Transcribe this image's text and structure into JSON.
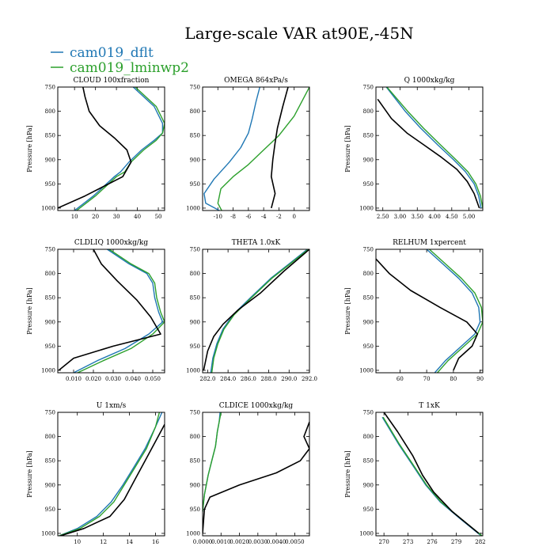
{
  "title": "Large-scale VAR at90E,-45N",
  "legend": [
    {
      "name": "cam019_dflt",
      "color": "#1f77b4"
    },
    {
      "name": "cam019_lminwp2",
      "color": "#2ca02c"
    }
  ],
  "obs_color": "#000000",
  "chart_data": [
    {
      "type": "line",
      "title": "CLOUD  100xfraction",
      "ylabel": "Pressure [hPa]",
      "xlim": [
        2,
        53
      ],
      "ylim": [
        750,
        1005
      ],
      "xticks": [
        10,
        20,
        30,
        40,
        50
      ],
      "xticklabels": [
        "10",
        "20",
        "30",
        "40",
        "50"
      ],
      "yticks": [
        750,
        800,
        850,
        900,
        950,
        1000
      ],
      "yticklabels": [
        "750",
        "800",
        "850",
        "900",
        "950",
        "1000"
      ],
      "series": [
        {
          "name": "cam019_dflt",
          "x": [
            10,
            19,
            29,
            32,
            36,
            42,
            48,
            52,
            52,
            48,
            38
          ],
          "y": [
            1005,
            975,
            935,
            925,
            905,
            880,
            860,
            845,
            825,
            790,
            750
          ]
        },
        {
          "name": "cam019_lminwp2",
          "x": [
            11,
            20,
            30,
            34,
            37,
            43,
            49,
            52,
            53,
            49,
            39
          ],
          "y": [
            1005,
            975,
            935,
            925,
            905,
            880,
            860,
            845,
            825,
            790,
            750
          ]
        },
        {
          "name": "obs",
          "x": [
            2,
            15,
            33,
            37,
            35,
            29,
            22,
            17,
            15,
            14
          ],
          "y": [
            1000,
            975,
            935,
            905,
            880,
            855,
            830,
            800,
            770,
            750
          ]
        }
      ]
    },
    {
      "type": "line",
      "title": "OMEGA  864xPa/s",
      "ylabel": "",
      "xlim": [
        -12,
        2
      ],
      "ylim": [
        750,
        1005
      ],
      "xticks": [
        -10,
        -8,
        -6,
        -4,
        -2,
        0
      ],
      "xticklabels": [
        "-10",
        "-8",
        "-6",
        "-4",
        "-2",
        "0"
      ],
      "yticks": [
        750,
        800,
        850,
        900,
        950,
        1000
      ],
      "yticklabels": [
        "750",
        "800",
        "850",
        "900",
        "950",
        "1000"
      ],
      "series": [
        {
          "name": "cam019_dflt",
          "x": [
            -9.8,
            -11.6,
            -11.8,
            -10.5,
            -8.5,
            -7,
            -6,
            -5.5,
            -5,
            -4.5
          ],
          "y": [
            1005,
            990,
            970,
            940,
            905,
            875,
            845,
            815,
            780,
            750
          ]
        },
        {
          "name": "cam019_lminwp2",
          "x": [
            -9.5,
            -10,
            -9.6,
            -8,
            -6,
            -4,
            -2,
            0,
            2
          ],
          "y": [
            1005,
            990,
            960,
            935,
            910,
            880,
            850,
            810,
            750
          ]
        },
        {
          "name": "obs",
          "x": [
            -3,
            -2.5,
            -3,
            -2.8,
            -2.5,
            -2.2,
            -1.5,
            -0.8
          ],
          "y": [
            1000,
            970,
            935,
            900,
            865,
            835,
            790,
            750
          ]
        }
      ]
    },
    {
      "type": "line",
      "title": "Q  1000xkg/kg",
      "ylabel": "Pressure [hPa]",
      "xlim": [
        2.3,
        5.4
      ],
      "ylim": [
        750,
        1005
      ],
      "xticks": [
        2.5,
        3.0,
        3.5,
        4.0,
        4.5,
        5.0
      ],
      "xticklabels": [
        "2.50",
        "3.00",
        "3.50",
        "4.00",
        "4.50",
        "5.00"
      ],
      "yticks": [
        750,
        800,
        850,
        900,
        950,
        1000
      ],
      "yticklabels": [
        "750",
        "800",
        "850",
        "900",
        "950",
        "1000"
      ],
      "series": [
        {
          "name": "cam019_dflt",
          "x": [
            5.35,
            5.28,
            5.15,
            4.9,
            4.55,
            4.1,
            3.6,
            3.15,
            2.6
          ],
          "y": [
            1000,
            975,
            950,
            925,
            900,
            870,
            835,
            800,
            750
          ]
        },
        {
          "name": "cam019_lminwp2",
          "x": [
            5.4,
            5.33,
            5.2,
            4.97,
            4.62,
            4.18,
            3.68,
            3.22,
            2.62
          ],
          "y": [
            1000,
            975,
            950,
            925,
            900,
            870,
            835,
            800,
            750
          ]
        },
        {
          "name": "obs",
          "x": [
            5.3,
            5.15,
            4.95,
            4.65,
            4.2,
            3.7,
            3.2,
            2.75,
            2.35
          ],
          "y": [
            1000,
            970,
            945,
            920,
            895,
            870,
            845,
            815,
            775
          ]
        }
      ]
    },
    {
      "type": "line",
      "title": "CLDLIQ  1000xkg/kg",
      "ylabel": "Pressure [hPa]",
      "xlim": [
        0.002,
        0.056
      ],
      "ylim": [
        750,
        1005
      ],
      "xticks": [
        0.01,
        0.02,
        0.03,
        0.04,
        0.05
      ],
      "xticklabels": [
        "0.010",
        "0.020",
        "0.030",
        "0.040",
        "0.050"
      ],
      "yticks": [
        750,
        800,
        850,
        900,
        950,
        1000
      ],
      "yticklabels": [
        "750",
        "800",
        "850",
        "900",
        "950",
        "1000"
      ],
      "series": [
        {
          "name": "cam019_dflt",
          "x": [
            0.01,
            0.022,
            0.036,
            0.048,
            0.055,
            0.053,
            0.051,
            0.05,
            0.047,
            0.038,
            0.027
          ],
          "y": [
            1005,
            980,
            955,
            925,
            900,
            880,
            850,
            820,
            800,
            780,
            750
          ]
        },
        {
          "name": "cam019_lminwp2",
          "x": [
            0.012,
            0.025,
            0.039,
            0.05,
            0.056,
            0.054,
            0.052,
            0.051,
            0.048,
            0.039,
            0.028
          ],
          "y": [
            1005,
            980,
            955,
            925,
            900,
            880,
            850,
            820,
            800,
            780,
            750
          ]
        },
        {
          "name": "obs",
          "x": [
            0.0025,
            0.01,
            0.03,
            0.054,
            0.049,
            0.042,
            0.032,
            0.024,
            0.02
          ],
          "y": [
            1000,
            975,
            950,
            925,
            890,
            855,
            815,
            780,
            750
          ]
        }
      ]
    },
    {
      "type": "line",
      "title": "THETA  1.0xK",
      "ylabel": "",
      "xlim": [
        281.5,
        292.0
      ],
      "ylim": [
        750,
        1005
      ],
      "xticks": [
        282.0,
        284.0,
        286.0,
        288.0,
        290.0,
        292.0
      ],
      "xticklabels": [
        "282.0",
        "284.0",
        "286.0",
        "288.0",
        "290.0",
        "292.0"
      ],
      "yticks": [
        750,
        800,
        850,
        900,
        950,
        1000
      ],
      "yticklabels": [
        "750",
        "800",
        "850",
        "900",
        "950",
        "1000"
      ],
      "series": [
        {
          "name": "cam019_dflt",
          "x": [
            282.3,
            282.5,
            282.9,
            283.5,
            284.5,
            286.2,
            288.2,
            290.0,
            291.8
          ],
          "y": [
            1005,
            975,
            945,
            915,
            885,
            850,
            810,
            780,
            750
          ]
        },
        {
          "name": "cam019_lminwp2",
          "x": [
            282.4,
            282.6,
            283.0,
            283.6,
            284.6,
            286.3,
            288.3,
            290.1,
            291.9
          ],
          "y": [
            1005,
            975,
            945,
            915,
            885,
            850,
            810,
            780,
            750
          ]
        },
        {
          "name": "obs",
          "x": [
            281.6,
            282.0,
            282.6,
            283.5,
            285.0,
            287.2,
            289.5,
            292.0
          ],
          "y": [
            1000,
            960,
            930,
            905,
            875,
            840,
            795,
            750
          ]
        }
      ]
    },
    {
      "type": "line",
      "title": "RELHUM  1xpercent",
      "ylabel": "Pressure [hPa]",
      "xlim": [
        51,
        91
      ],
      "ylim": [
        750,
        1005
      ],
      "xticks": [
        60,
        70,
        80,
        90
      ],
      "xticklabels": [
        "60",
        "70",
        "80",
        "90"
      ],
      "yticks": [
        750,
        800,
        850,
        900,
        950,
        1000
      ],
      "yticklabels": [
        "750",
        "800",
        "850",
        "900",
        "950",
        "1000"
      ],
      "series": [
        {
          "name": "cam019_dflt",
          "x": [
            73,
            77,
            83,
            88,
            90,
            89.5,
            87,
            82,
            76,
            70
          ],
          "y": [
            1005,
            980,
            950,
            925,
            900,
            870,
            840,
            810,
            780,
            750
          ]
        },
        {
          "name": "cam019_lminwp2",
          "x": [
            74,
            78,
            84,
            89,
            91,
            90.5,
            88,
            83,
            77,
            71
          ],
          "y": [
            1005,
            980,
            950,
            925,
            900,
            870,
            840,
            810,
            780,
            750
          ]
        },
        {
          "name": "obs",
          "x": [
            80,
            82,
            87,
            89,
            85,
            75,
            64,
            56,
            51
          ],
          "y": [
            1000,
            975,
            950,
            925,
            900,
            870,
            835,
            800,
            770
          ]
        }
      ]
    },
    {
      "type": "line",
      "title": "U  1xm/s",
      "ylabel": "Pressure [hPa]",
      "xlim": [
        8.5,
        16.7
      ],
      "ylim": [
        750,
        1005
      ],
      "xticks": [
        10,
        12,
        14,
        16
      ],
      "xticklabels": [
        "10",
        "12",
        "14",
        "16"
      ],
      "yticks": [
        750,
        800,
        850,
        900,
        950,
        1000
      ],
      "yticklabels": [
        "750",
        "800",
        "850",
        "900",
        "950",
        "1000"
      ],
      "series": [
        {
          "name": "cam019_dflt",
          "x": [
            8.6,
            10.0,
            11.5,
            12.6,
            13.5,
            14.3,
            15.2,
            16.0,
            16.5
          ],
          "y": [
            1005,
            990,
            965,
            935,
            900,
            865,
            825,
            780,
            750
          ]
        },
        {
          "name": "cam019_lminwp2",
          "x": [
            8.6,
            10.2,
            11.7,
            12.8,
            13.6,
            14.4,
            15.3,
            16.0,
            16.3
          ],
          "y": [
            1005,
            990,
            965,
            935,
            900,
            865,
            825,
            780,
            750
          ]
        },
        {
          "name": "obs",
          "x": [
            8.7,
            10.5,
            12.5,
            13.6,
            14.4,
            15.2,
            16.0,
            16.7
          ],
          "y": [
            1005,
            990,
            965,
            930,
            890,
            850,
            810,
            775
          ]
        }
      ]
    },
    {
      "type": "line",
      "title": "CLDICE  1000xkg/kg",
      "ylabel": "",
      "xlim": [
        0,
        0.0058
      ],
      "ylim": [
        750,
        1005
      ],
      "xticks": [
        0,
        0.001,
        0.002,
        0.003,
        0.004,
        0.005
      ],
      "xticklabels": [
        "0.0000",
        "0.0010",
        "0.0020",
        "0.0030",
        "0.0040",
        "0.0050"
      ],
      "yticks": [
        750,
        800,
        850,
        900,
        950,
        1000
      ],
      "yticklabels": [
        "750",
        "800",
        "850",
        "900",
        "950",
        "1000"
      ],
      "series": [
        {
          "name": "cam019_dflt",
          "x": [
            0.0,
            0.0001,
            0.0003,
            0.0005,
            0.0007,
            0.0008,
            0.0009,
            0.00095
          ],
          "y": [
            955,
            920,
            880,
            850,
            820,
            790,
            770,
            750
          ]
        },
        {
          "name": "cam019_lminwp2",
          "x": [
            0.0,
            0.0001,
            0.0003,
            0.0005,
            0.0007,
            0.0008,
            0.0009,
            0.001
          ],
          "y": [
            955,
            920,
            880,
            850,
            820,
            790,
            770,
            750
          ]
        },
        {
          "name": "obs",
          "x": [
            0.0,
            0.0001,
            0.0004,
            0.002,
            0.004,
            0.0053,
            0.0058,
            0.0055,
            0.0058
          ],
          "y": [
            1000,
            950,
            925,
            900,
            875,
            850,
            825,
            800,
            770
          ]
        }
      ]
    },
    {
      "type": "line",
      "title": "T  1xK",
      "ylabel": "Pressure [hPa]",
      "xlim": [
        269,
        282.3
      ],
      "ylim": [
        750,
        1005
      ],
      "xticks": [
        270,
        273,
        276,
        279,
        282
      ],
      "xticklabels": [
        "270",
        "273",
        "276",
        "279",
        "282"
      ],
      "yticks": [
        750,
        800,
        850,
        900,
        950,
        1000
      ],
      "yticklabels": [
        "750",
        "800",
        "850",
        "900",
        "950",
        "1000"
      ],
      "series": [
        {
          "name": "cam019_dflt",
          "x": [
            282.1,
            279.5,
            277.0,
            275.2,
            273.6,
            271.8,
            269.8
          ],
          "y": [
            1005,
            970,
            935,
            900,
            860,
            815,
            760
          ]
        },
        {
          "name": "cam019_lminwp2",
          "x": [
            282.2,
            279.6,
            277.1,
            275.3,
            273.7,
            271.9,
            269.9
          ],
          "y": [
            1005,
            970,
            935,
            900,
            860,
            815,
            760
          ]
        },
        {
          "name": "obs",
          "x": [
            281.8,
            278.5,
            276.2,
            274.8,
            273.6,
            271.7,
            270.0
          ],
          "y": [
            1000,
            955,
            915,
            880,
            840,
            790,
            750
          ]
        }
      ]
    }
  ]
}
